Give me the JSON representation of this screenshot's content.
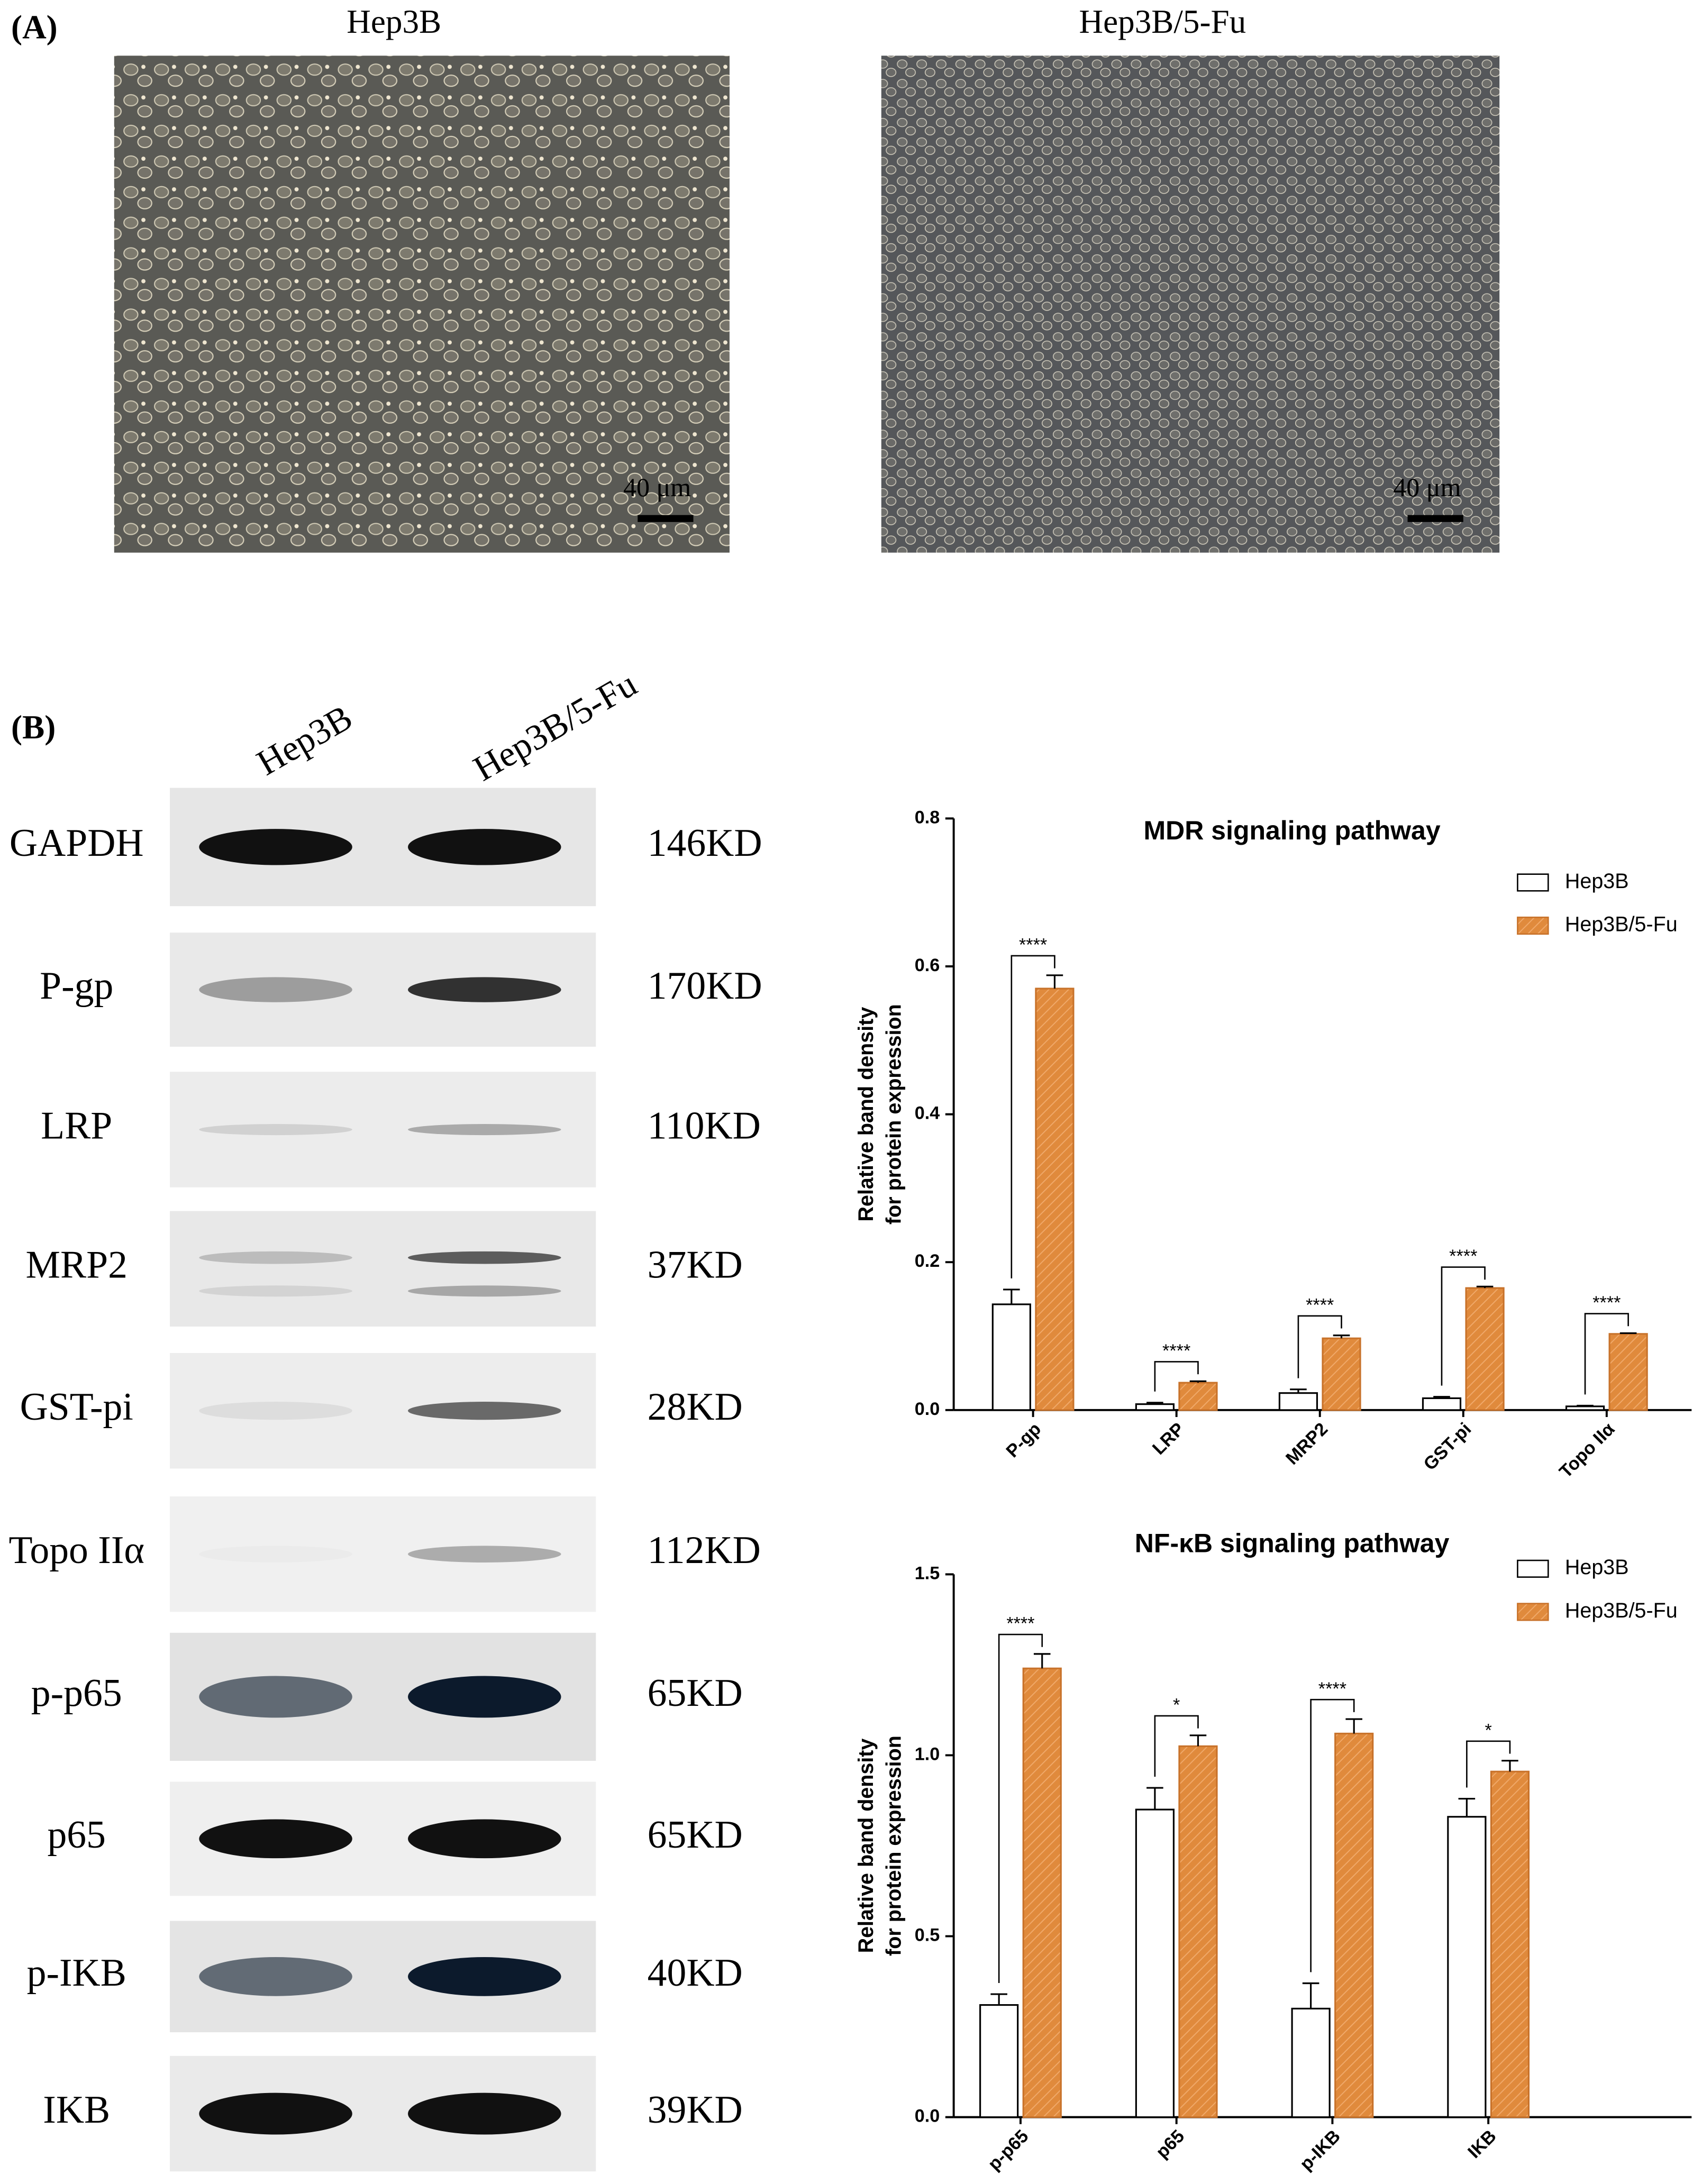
{
  "panel_a": {
    "label": "(A)",
    "images": [
      {
        "title": "Hep3B",
        "scale_bar": "40 μm"
      },
      {
        "title": "Hep3B/5-Fu",
        "scale_bar": "40 μm"
      }
    ]
  },
  "panel_b": {
    "label": "(B)",
    "lanes": [
      "Hep3B",
      "Hep3B/5-Fu"
    ],
    "blots": [
      {
        "protein": "GAPDH",
        "size": "146KD"
      },
      {
        "protein": "P-gp",
        "size": "170KD"
      },
      {
        "protein": "LRP",
        "size": "110KD"
      },
      {
        "protein": "MRP2",
        "size": "37KD"
      },
      {
        "protein": "GST-pi",
        "size": "28KD"
      },
      {
        "protein": "Topo IIα",
        "size": "112KD"
      },
      {
        "protein": "p-p65",
        "size": "65KD"
      },
      {
        "protein": "p65",
        "size": "65KD"
      },
      {
        "protein": "p-IKB",
        "size": "40KD"
      },
      {
        "protein": "IKB",
        "size": "39KD"
      }
    ]
  },
  "chart_data": [
    {
      "type": "bar",
      "title": "MDR signaling pathway",
      "ylabel": [
        "Relative band density",
        "for protein expression"
      ],
      "categories": [
        "P-gp",
        "LRP",
        "MRP2",
        "GST-pi",
        "Topo IIα"
      ],
      "series": [
        {
          "name": "Hep3B",
          "color": "#ffffff",
          "values": [
            0.143,
            0.008,
            0.023,
            0.016,
            0.005
          ],
          "errors": [
            0.02,
            0.002,
            0.005,
            0.002,
            0.001
          ]
        },
        {
          "name": "Hep3B/5-Fu",
          "color": "#e08a3c",
          "values": [
            0.57,
            0.037,
            0.097,
            0.165,
            0.103
          ],
          "errors": [
            0.018,
            0.002,
            0.004,
            0.002,
            0.001
          ]
        }
      ],
      "significance": [
        "****",
        "****",
        "****",
        "****",
        "****"
      ],
      "ylim": [
        0,
        0.8
      ],
      "yticks": [
        {
          "value": 0,
          "label": "0.0"
        },
        0.2,
        0.4,
        0.6,
        0.8
      ],
      "legend": "top-right"
    },
    {
      "type": "bar",
      "title": "NF-κB signaling pathway",
      "ylabel": [
        "Relative band density",
        "for protein expression"
      ],
      "categories": [
        "p-p65",
        "p65",
        "p-IKB",
        "IKB"
      ],
      "series": [
        {
          "name": "Hep3B",
          "color": "#ffffff",
          "values": [
            0.31,
            0.85,
            0.3,
            0.83
          ],
          "errors": [
            0.03,
            0.06,
            0.07,
            0.05
          ]
        },
        {
          "name": "Hep3B/5-Fu",
          "color": "#e08a3c",
          "values": [
            1.24,
            1.025,
            1.06,
            0.955
          ],
          "errors": [
            0.04,
            0.03,
            0.04,
            0.03
          ]
        }
      ],
      "significance": [
        "****",
        "*",
        "****",
        "*"
      ],
      "ylim": [
        0,
        1.5
      ],
      "yticks": [
        {
          "value": 0,
          "label": "0.0"
        },
        0.5,
        {
          "value": 1,
          "label": "1.0"
        },
        1.5
      ],
      "legend": "top-right"
    }
  ]
}
